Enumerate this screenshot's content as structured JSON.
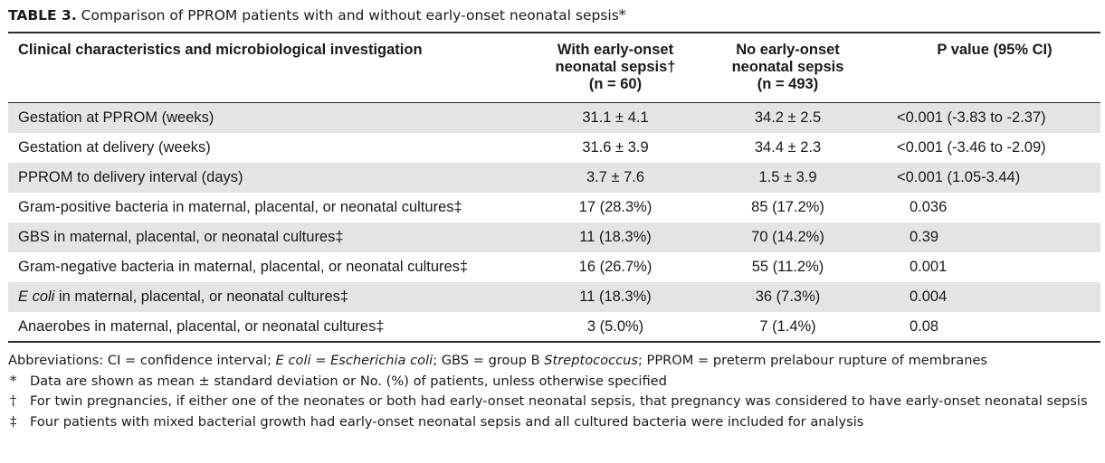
{
  "caption": {
    "label": "TABLE 3.",
    "text": "Comparison of PPROM patients with and without early-onset neonatal sepsis",
    "mark": "*"
  },
  "table": {
    "headers": [
      [
        "Clinical characteristics and microbiological investigation"
      ],
      [
        "With early-onset",
        "neonatal sepsis†",
        "(n = 60)"
      ],
      [
        "No early-onset",
        "neonatal sepsis",
        "(n = 493)"
      ],
      [
        "P value (95% CI)"
      ]
    ],
    "rows": [
      {
        "label": "Gestation at PPROM (weeks)",
        "with": "31.1 ± 4.1",
        "without": "34.2 ± 2.5",
        "p": "<0.001 (-3.83 to -2.37)"
      },
      {
        "label": "Gestation at delivery (weeks)",
        "with": "31.6 ± 3.9",
        "without": "34.4 ± 2.3",
        "p": "<0.001 (-3.46 to -2.09)"
      },
      {
        "label": "PPROM to delivery interval (days)",
        "with": "3.7 ± 7.6",
        "without": "1.5 ± 3.9",
        "p": "<0.001 (1.05-3.44)"
      },
      {
        "label": "Gram-positive bacteria in maternal, placental, or neonatal cultures‡",
        "with": "17 (28.3%)",
        "without": "85 (17.2%)",
        "p": "0.036"
      },
      {
        "label": "GBS in maternal, placental, or neonatal cultures‡",
        "with": "11 (18.3%)",
        "without": "70 (14.2%)",
        "p": "0.39"
      },
      {
        "label": "Gram-negative bacteria in maternal, placental, or neonatal cultures‡",
        "with": "16 (26.7%)",
        "without": "55 (11.2%)",
        "p": "0.001"
      },
      {
        "label_italic": "E coli",
        "label_rest": " in maternal, placental, or neonatal cultures‡",
        "with": "11 (18.3%)",
        "without": "36 (7.3%)",
        "p": "0.004"
      },
      {
        "label": "Anaerobes in maternal, placental, or neonatal cultures‡",
        "with": "3 (5.0%)",
        "without": "7 (1.4%)",
        "p": "0.08"
      }
    ]
  },
  "footnotes": {
    "abbreviations": {
      "a": "Abbreviations: CI = confidence interval; ",
      "b": "E coli",
      "c": " = ",
      "d": "Escherichia coli",
      "e": "; GBS = group B ",
      "f": "Streptococcus",
      "g": "; PPROM = preterm prelabour rupture of membranes"
    },
    "notes": [
      {
        "symbol": "*",
        "text": "Data are shown as mean ± standard deviation or No. (%) of patients, unless otherwise specified"
      },
      {
        "symbol": "†",
        "text": "For twin pregnancies, if either one of the neonates or both had early-onset neonatal sepsis, that pregnancy was considered to have early-onset neonatal sepsis"
      },
      {
        "symbol": "‡",
        "text": "Four patients with mixed bacterial growth had early-onset neonatal sepsis and all cultured bacteria were included for analysis"
      }
    ]
  },
  "colors": {
    "shade": "#e4e4e4",
    "rule": "#2b2b2b",
    "text": "#1a1a1a"
  }
}
